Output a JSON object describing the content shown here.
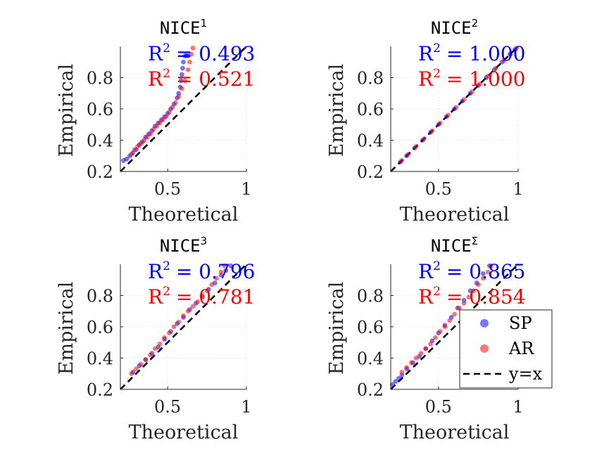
{
  "chart_data": [
    {
      "type": "scatter",
      "title": "NICE",
      "title_superscript": "1",
      "xlabel": "Theoretical",
      "ylabel": "Empirical",
      "xlim": [
        0.2,
        1.0
      ],
      "ylim": [
        0.2,
        1.0
      ],
      "xticks": [
        0.5,
        1
      ],
      "xtick_labels": [
        "0.5",
        "1"
      ],
      "yticks": [
        0.2,
        0.4,
        0.6,
        0.8
      ],
      "ytick_labels": [
        "0.2",
        "0.4",
        "0.6",
        "0.8"
      ],
      "grid": true,
      "reference_line": "y=x",
      "series": [
        {
          "name": "SP",
          "color": "#0000ff",
          "r2_label": "R",
          "r2_superscript": "2",
          "r2_value": "= 0.493",
          "x": [
            0.22,
            0.24,
            0.26,
            0.28,
            0.3,
            0.32,
            0.34,
            0.36,
            0.38,
            0.4,
            0.42,
            0.44,
            0.46,
            0.48,
            0.5,
            0.52,
            0.54,
            0.56,
            0.57,
            0.58,
            0.585,
            0.59,
            0.595,
            0.6,
            0.61,
            0.62,
            0.63
          ],
          "y": [
            0.27,
            0.28,
            0.3,
            0.32,
            0.34,
            0.37,
            0.39,
            0.42,
            0.44,
            0.46,
            0.49,
            0.51,
            0.53,
            0.55,
            0.57,
            0.6,
            0.63,
            0.67,
            0.7,
            0.74,
            0.78,
            0.82,
            0.86,
            0.9,
            0.94,
            0.94,
            0.94
          ]
        },
        {
          "name": "AR",
          "color": "#ff0000",
          "r2_label": "R",
          "r2_superscript": "2",
          "r2_value": "= 0.521",
          "x": [
            0.27,
            0.29,
            0.31,
            0.33,
            0.35,
            0.37,
            0.39,
            0.41,
            0.43,
            0.45,
            0.47,
            0.49,
            0.51,
            0.53,
            0.55,
            0.57,
            0.59,
            0.61,
            0.63,
            0.64,
            0.65,
            0.66
          ],
          "y": [
            0.31,
            0.34,
            0.36,
            0.38,
            0.4,
            0.42,
            0.44,
            0.47,
            0.49,
            0.51,
            0.53,
            0.55,
            0.58,
            0.61,
            0.64,
            0.68,
            0.73,
            0.78,
            0.85,
            0.9,
            0.95,
            0.99
          ]
        }
      ]
    },
    {
      "type": "scatter",
      "title": "NICE",
      "title_superscript": "2",
      "xlabel": "Theoretical",
      "ylabel": "Empirical",
      "xlim": [
        0.2,
        1.0
      ],
      "ylim": [
        0.2,
        1.0
      ],
      "xticks": [
        0.5,
        1
      ],
      "xtick_labels": [
        "0.5",
        "1"
      ],
      "yticks": [
        0.2,
        0.4,
        0.6,
        0.8
      ],
      "ytick_labels": [
        "0.2",
        "0.4",
        "0.6",
        "0.8"
      ],
      "grid": true,
      "reference_line": "y=x",
      "series": [
        {
          "name": "SP",
          "color": "#0000ff",
          "r2_label": "R",
          "r2_superscript": "2",
          "r2_value": "= 1.000",
          "x": [
            0.26,
            0.3,
            0.35,
            0.4,
            0.45,
            0.5,
            0.55,
            0.6,
            0.65,
            0.7,
            0.75,
            0.8,
            0.85,
            0.9,
            0.95,
            0.98
          ],
          "y": [
            0.26,
            0.3,
            0.35,
            0.4,
            0.45,
            0.5,
            0.55,
            0.6,
            0.65,
            0.7,
            0.75,
            0.8,
            0.85,
            0.9,
            0.95,
            0.98
          ]
        },
        {
          "name": "AR",
          "color": "#ff0000",
          "r2_label": "R",
          "r2_superscript": "2",
          "r2_value": "= 1.000",
          "x": [
            0.27,
            0.31,
            0.36,
            0.41,
            0.46,
            0.51,
            0.56,
            0.61,
            0.66,
            0.71,
            0.76,
            0.81,
            0.86,
            0.91,
            0.95,
            0.99
          ],
          "y": [
            0.27,
            0.31,
            0.36,
            0.41,
            0.46,
            0.51,
            0.56,
            0.61,
            0.66,
            0.71,
            0.76,
            0.81,
            0.86,
            0.91,
            0.95,
            0.99
          ]
        }
      ]
    },
    {
      "type": "scatter",
      "title": "NICE",
      "title_superscript": "3",
      "xlabel": "Theoretical",
      "ylabel": "Empirical",
      "xlim": [
        0.2,
        1.0
      ],
      "ylim": [
        0.2,
        1.0
      ],
      "xticks": [
        0.5,
        1
      ],
      "xtick_labels": [
        "0.5",
        "1"
      ],
      "yticks": [
        0.2,
        0.4,
        0.6,
        0.8
      ],
      "ytick_labels": [
        "0.2",
        "0.4",
        "0.6",
        "0.8"
      ],
      "grid": true,
      "reference_line": "y=x",
      "series": [
        {
          "name": "SP",
          "color": "#0000ff",
          "r2_label": "R",
          "r2_superscript": "2",
          "r2_value": "= 0.796",
          "x": [
            0.28,
            0.32,
            0.36,
            0.4,
            0.44,
            0.48,
            0.52,
            0.56,
            0.6,
            0.64,
            0.68,
            0.72,
            0.76,
            0.8,
            0.84,
            0.87,
            0.9
          ],
          "y": [
            0.31,
            0.35,
            0.39,
            0.43,
            0.47,
            0.52,
            0.57,
            0.62,
            0.66,
            0.71,
            0.75,
            0.79,
            0.84,
            0.88,
            0.93,
            0.96,
            0.99
          ]
        },
        {
          "name": "AR",
          "color": "#ff0000",
          "r2_label": "R",
          "r2_superscript": "2",
          "r2_value": "= 0.781",
          "x": [
            0.27,
            0.3,
            0.33,
            0.36,
            0.39,
            0.42,
            0.45,
            0.48,
            0.51,
            0.54,
            0.57,
            0.6,
            0.63,
            0.66,
            0.69,
            0.72,
            0.75,
            0.78,
            0.81,
            0.84,
            0.86
          ],
          "y": [
            0.3,
            0.33,
            0.36,
            0.39,
            0.42,
            0.46,
            0.49,
            0.53,
            0.56,
            0.6,
            0.63,
            0.67,
            0.7,
            0.73,
            0.76,
            0.8,
            0.83,
            0.87,
            0.91,
            0.95,
            0.99
          ]
        }
      ]
    },
    {
      "type": "scatter",
      "title": "NICE",
      "title_superscript": "Σ",
      "xlabel": "Theoretical",
      "ylabel": "Empirical",
      "xlim": [
        0.2,
        1.0
      ],
      "ylim": [
        0.2,
        1.0
      ],
      "xticks": [
        0.5,
        1
      ],
      "xtick_labels": [
        "0.5",
        "1"
      ],
      "yticks": [
        0.2,
        0.4,
        0.6,
        0.8
      ],
      "ytick_labels": [
        "0.2",
        "0.4",
        "0.6",
        "0.8"
      ],
      "grid": true,
      "reference_line": "y=x",
      "legend": {
        "location": "bottom-right",
        "entries": [
          "SP",
          "AR",
          "y=x"
        ]
      },
      "series": [
        {
          "name": "SP",
          "color": "#0000ff",
          "r2_label": "R",
          "r2_superscript": "2",
          "r2_value": "= 0.865",
          "x": [
            0.21,
            0.23,
            0.25,
            0.27,
            0.3,
            0.34,
            0.38,
            0.42,
            0.46,
            0.5,
            0.54,
            0.58,
            0.62,
            0.66,
            0.7,
            0.74,
            0.78,
            0.82
          ],
          "y": [
            0.23,
            0.25,
            0.27,
            0.29,
            0.33,
            0.37,
            0.41,
            0.46,
            0.51,
            0.56,
            0.61,
            0.66,
            0.72,
            0.77,
            0.83,
            0.88,
            0.94,
            0.99
          ]
        },
        {
          "name": "AR",
          "color": "#ff0000",
          "r2_label": "R",
          "r2_superscript": "2",
          "r2_value": "= 0.854",
          "x": [
            0.27,
            0.3,
            0.33,
            0.36,
            0.39,
            0.42,
            0.45,
            0.48,
            0.51,
            0.54,
            0.57,
            0.6,
            0.63,
            0.66,
            0.69,
            0.72,
            0.75,
            0.78,
            0.81,
            0.83
          ],
          "y": [
            0.31,
            0.34,
            0.37,
            0.4,
            0.43,
            0.46,
            0.49,
            0.53,
            0.57,
            0.6,
            0.64,
            0.68,
            0.72,
            0.75,
            0.79,
            0.83,
            0.87,
            0.91,
            0.95,
            0.99
          ]
        }
      ]
    }
  ],
  "legend": {
    "sp_label": "SP",
    "ar_label": "AR",
    "line_label": "y=x",
    "sp_color": "#7878ff",
    "ar_color": "#ff7878"
  }
}
